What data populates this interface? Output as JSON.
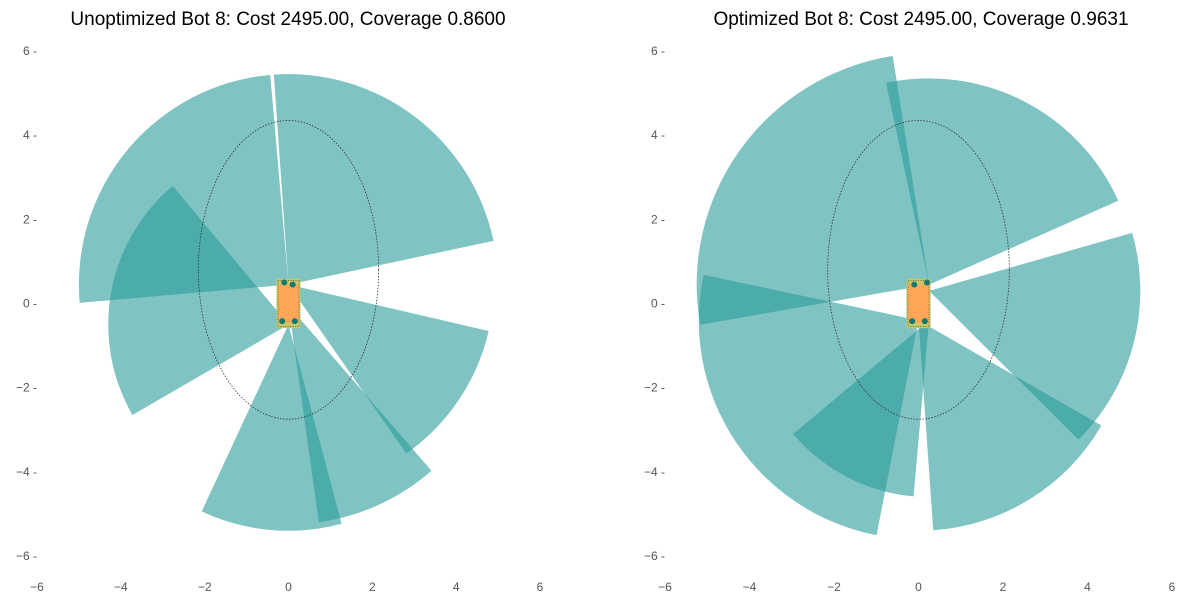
{
  "colors": {
    "sector": "#2a9d99",
    "robot_body": "#ffa657",
    "robot_base": "#c5c96a",
    "sensor": "#117a6f",
    "outline": "#333333",
    "tick_text": "#555555"
  },
  "chart_data": [
    {
      "type": "polar-sector-coverage",
      "title": "Unoptimized Bot 8: Cost 2495.00, Coverage 0.8600",
      "xlim": [
        -6,
        6
      ],
      "ylim": [
        -6,
        6
      ],
      "xticks": [
        "−6",
        "−4",
        "−2",
        "0",
        "2",
        "4",
        "6"
      ],
      "yticks": [
        "6 -",
        "4 -",
        "2 -",
        "0 -",
        "−2 -",
        "−4 -",
        "−6 -"
      ],
      "xtick_values": [
        -6,
        -4,
        -2,
        0,
        2,
        4,
        6
      ],
      "ytick_values": [
        6,
        4,
        2,
        0,
        -2,
        -4,
        -6
      ],
      "grid": false,
      "sector_opacity": 0.6,
      "robot": {
        "x": [
          -0.25,
          0.25
        ],
        "y": [
          -0.55,
          0.55
        ]
      },
      "region_ellipse": {
        "cx": 0,
        "cy": 0.8,
        "rx": 2.15,
        "ry": 3.55
      },
      "sectors": [
        {
          "origin": [
            0,
            0.45
          ],
          "radius": 5.0,
          "start_deg": 95,
          "end_deg": 185
        },
        {
          "origin": [
            0,
            0.45
          ],
          "radius": 5.0,
          "start_deg": 12,
          "end_deg": 94
        },
        {
          "origin": [
            0,
            -0.5
          ],
          "radius": 4.3,
          "start_deg": 130,
          "end_deg": 210
        },
        {
          "origin": [
            0,
            -0.5
          ],
          "radius": 4.9,
          "start_deg": -75,
          "end_deg": -115
        },
        {
          "origin": [
            0,
            -0.05
          ],
          "radius": 5.2,
          "start_deg": -49,
          "end_deg": -82
        },
        {
          "origin": [
            0,
            0.45
          ],
          "radius": 4.9,
          "start_deg": -55,
          "end_deg": -13
        }
      ],
      "sensors": [
        {
          "x": -0.1,
          "y": 0.5
        },
        {
          "x": 0.1,
          "y": 0.45
        },
        {
          "x": -0.15,
          "y": -0.42
        },
        {
          "x": 0.15,
          "y": -0.42
        }
      ]
    },
    {
      "type": "polar-sector-coverage",
      "title": "Optimized Bot 8: Cost 2495.00, Coverage 0.9631",
      "xlim": [
        -6,
        6
      ],
      "ylim": [
        -6,
        6
      ],
      "xticks": [
        "−6",
        "−4",
        "−2",
        "0",
        "2",
        "4",
        "6"
      ],
      "yticks": [
        "6 -",
        "4 -",
        "2 -",
        "0 -",
        "−2 -",
        "−4 -",
        "−6 -"
      ],
      "xtick_values": [
        -6,
        -4,
        -2,
        0,
        2,
        4,
        6
      ],
      "ytick_values": [
        6,
        4,
        2,
        0,
        -2,
        -4,
        -6
      ],
      "grid": false,
      "sector_opacity": 0.6,
      "robot": {
        "x": [
          -0.25,
          0.25
        ],
        "y": [
          -0.55,
          0.55
        ]
      },
      "region_ellipse": {
        "cx": 0,
        "cy": 0.8,
        "rx": 2.15,
        "ry": 3.55
      },
      "sectors": [
        {
          "origin": [
            0.25,
            0.45
          ],
          "radius": 5.5,
          "start_deg": 99,
          "end_deg": 190
        },
        {
          "origin": [
            0.25,
            0.45
          ],
          "radius": 4.9,
          "start_deg": 24,
          "end_deg": 102
        },
        {
          "origin": [
            0.25,
            0.3
          ],
          "radius": 5.0,
          "start_deg": -45,
          "end_deg": 16
        },
        {
          "origin": [
            0,
            -0.4
          ],
          "radius": 5.2,
          "start_deg": 168,
          "end_deg": 259
        },
        {
          "origin": [
            0,
            -0.4
          ],
          "radius": 5.0,
          "start_deg": -86,
          "end_deg": -30
        },
        {
          "origin": [
            0.25,
            -0.4
          ],
          "radius": 4.2,
          "start_deg": -140,
          "end_deg": -95
        }
      ],
      "sensors": [
        {
          "x": -0.1,
          "y": 0.45
        },
        {
          "x": 0.2,
          "y": 0.5
        },
        {
          "x": -0.15,
          "y": -0.42
        },
        {
          "x": 0.15,
          "y": -0.42
        }
      ]
    }
  ]
}
